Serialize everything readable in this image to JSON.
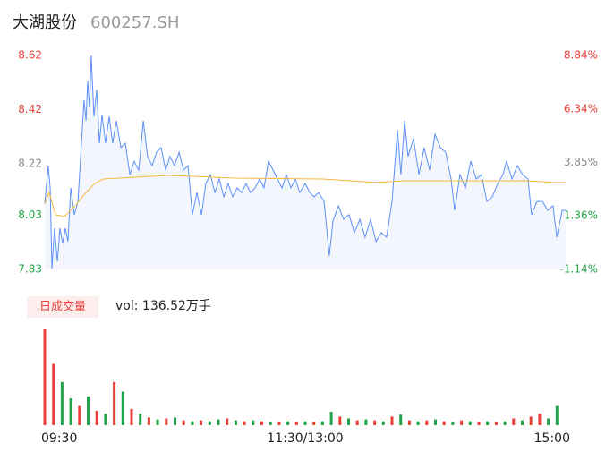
{
  "header": {
    "name": "大湖股份",
    "code": "600257.SH"
  },
  "chart_data": [
    {
      "type": "line",
      "xlim": [
        0,
        240
      ],
      "xticks": [
        {
          "value": 0,
          "label": "09:30"
        },
        {
          "value": 120,
          "label": "11:30/13:00"
        },
        {
          "value": 240,
          "label": "15:00"
        }
      ],
      "ylim": [
        7.83,
        8.62
      ],
      "yticks": [
        8.62,
        8.42,
        8.22,
        8.03,
        7.83
      ],
      "y2lim": [
        -1.14,
        8.84
      ],
      "y2ticks": [
        {
          "value": 8.84,
          "label": "8.84%"
        },
        {
          "value": 6.34,
          "label": "6.34%"
        },
        {
          "value": 3.85,
          "label": "3.85%"
        },
        {
          "value": 1.36,
          "label": "1.36%"
        },
        {
          "value": -1.14,
          "label": "-1.14%"
        }
      ],
      "ytick_colors": [
        "#e8413c",
        "#e8413c",
        "#888888",
        "#22a548",
        "#22a548"
      ],
      "area_color": "#f3f6fd",
      "series": [
        {
          "color": "#5b8ff9",
          "x": [
            0,
            1.6,
            2.5,
            3.3,
            4.5,
            5.8,
            7.0,
            8.2,
            9.5,
            10.7,
            12.0,
            13.6,
            15.3,
            16.9,
            18.1,
            19.0,
            19.8,
            20.6,
            21.4,
            22.7,
            23.9,
            25.2,
            26.4,
            28.0,
            29.7,
            31.3,
            33.0,
            35.1,
            37.1,
            39.2,
            41.2,
            43.3,
            45.4,
            47.4,
            49.5,
            51.5,
            53.6,
            55.7,
            57.7,
            59.8,
            61.9,
            63.9,
            66.0,
            68.0,
            70.1,
            72.2,
            74.2,
            76.3,
            78.4,
            80.4,
            82.5,
            84.5,
            86.6,
            88.7,
            90.7,
            92.8,
            94.8,
            96.9,
            99.0,
            101.0,
            103.1,
            105.2,
            107.2,
            109.3,
            111.3,
            113.4,
            115.5,
            117.5,
            120.0,
            122.1,
            124.1,
            126.2,
            128.7,
            131.1,
            132.8,
            135.3,
            137.7,
            140.2,
            142.7,
            145.2,
            147.6,
            150.1,
            152.6,
            155.1,
            157.5,
            160.0,
            162.5,
            164.1,
            165.8,
            167.4,
            169.9,
            172.4,
            174.8,
            177.3,
            179.8,
            182.3,
            184.7,
            187.2,
            188.9,
            191.3,
            193.8,
            196.3,
            198.8,
            201.2,
            203.7,
            206.2,
            208.7,
            211.1,
            212.8,
            215.3,
            217.7,
            220.2,
            222.7,
            224.3,
            226.8,
            229.3,
            231.8,
            234.2,
            235.9,
            238.4,
            240
          ],
          "values": [
            8.071,
            8.213,
            8.131,
            7.833,
            7.982,
            7.86,
            7.982,
            7.926,
            7.982,
            7.933,
            8.131,
            8.032,
            8.081,
            8.296,
            8.455,
            8.379,
            8.527,
            8.428,
            8.62,
            8.395,
            8.494,
            8.296,
            8.402,
            8.296,
            8.395,
            8.296,
            8.379,
            8.28,
            8.296,
            8.18,
            8.23,
            8.197,
            8.379,
            8.247,
            8.213,
            8.263,
            8.28,
            8.197,
            8.247,
            8.213,
            8.263,
            8.197,
            8.213,
            8.032,
            8.114,
            8.032,
            8.147,
            8.18,
            8.114,
            8.164,
            8.098,
            8.147,
            8.098,
            8.131,
            8.114,
            8.147,
            8.114,
            8.131,
            8.164,
            8.131,
            8.23,
            8.197,
            8.164,
            8.131,
            8.18,
            8.131,
            8.164,
            8.114,
            8.147,
            8.114,
            8.098,
            8.114,
            8.081,
            7.88,
            8.009,
            8.065,
            8.015,
            8.032,
            7.966,
            8.015,
            7.949,
            8.015,
            7.933,
            7.966,
            7.949,
            8.081,
            8.346,
            8.18,
            8.379,
            8.247,
            8.313,
            8.18,
            8.28,
            8.197,
            8.329,
            8.28,
            8.263,
            8.164,
            8.048,
            8.18,
            8.131,
            8.23,
            8.164,
            8.18,
            8.081,
            8.098,
            8.147,
            8.18,
            8.23,
            8.164,
            8.213,
            8.18,
            8.164,
            8.032,
            8.081,
            8.081,
            8.048,
            8.065,
            7.949,
            8.048,
            8.048
          ]
        },
        {
          "color": "#f5b83d",
          "x": [
            0,
            2,
            5,
            9,
            14,
            19,
            23,
            27,
            41,
            56,
            68,
            87,
            128,
            153,
            165,
            186,
            223,
            235,
            240
          ],
          "values": [
            8.071,
            8.114,
            8.032,
            8.025,
            8.065,
            8.114,
            8.147,
            8.164,
            8.17,
            8.177,
            8.174,
            8.167,
            8.164,
            8.151,
            8.157,
            8.157,
            8.157,
            8.151,
            8.151
          ]
        }
      ]
    },
    {
      "type": "bar",
      "label": "日成交量",
      "volume_text": "vol: 136.52万手",
      "xlim": [
        0,
        240
      ],
      "ylim": [
        0,
        10
      ],
      "x": [
        0,
        4,
        8,
        12,
        16,
        20,
        24,
        28,
        32,
        36,
        40,
        44,
        48,
        52,
        56,
        60,
        64,
        68,
        72,
        76,
        80,
        84,
        88,
        92,
        96,
        100,
        104,
        108,
        112,
        116,
        120,
        124,
        128,
        132,
        136,
        140,
        144,
        148,
        152,
        156,
        160,
        164,
        168,
        172,
        176,
        180,
        184,
        188,
        192,
        196,
        200,
        204,
        208,
        212,
        216,
        220,
        224,
        228,
        232,
        236
      ],
      "values": [
        10,
        6.4,
        4.5,
        2.8,
        2.0,
        3.0,
        1.5,
        1.2,
        4.5,
        3.5,
        1.7,
        1.2,
        0.8,
        0.6,
        0.7,
        0.8,
        0.5,
        0.4,
        0.5,
        0.4,
        0.6,
        0.7,
        0.5,
        0.4,
        0.5,
        0.4,
        0.3,
        0.3,
        0.4,
        0.3,
        0.4,
        0.3,
        0.4,
        1.4,
        0.9,
        0.7,
        0.5,
        0.6,
        0.5,
        0.4,
        0.9,
        1.1,
        0.5,
        0.4,
        0.5,
        0.6,
        0.4,
        0.3,
        0.5,
        0.4,
        0.3,
        0.4,
        0.3,
        0.4,
        0.7,
        0.5,
        0.9,
        1.2,
        0.7,
        2.0
      ],
      "colors": [
        "#e8413c",
        "#e8413c",
        "#22a548",
        "#22a548",
        "#e8413c",
        "#22a548",
        "#e8413c",
        "#22a548",
        "#e8413c",
        "#22a548",
        "#e8413c",
        "#22a548",
        "#e8413c",
        "#22a548",
        "#e8413c",
        "#22a548",
        "#e8413c",
        "#22a548",
        "#e8413c",
        "#22a548",
        "#22a548",
        "#e8413c",
        "#22a548",
        "#e8413c",
        "#22a548",
        "#e8413c",
        "#22a548",
        "#e8413c",
        "#22a548",
        "#e8413c",
        "#22a548",
        "#e8413c",
        "#22a548",
        "#22a548",
        "#e8413c",
        "#22a548",
        "#e8413c",
        "#22a548",
        "#e8413c",
        "#22a548",
        "#e8413c",
        "#22a548",
        "#e8413c",
        "#22a548",
        "#e8413c",
        "#22a548",
        "#e8413c",
        "#22a548",
        "#e8413c",
        "#22a548",
        "#e8413c",
        "#22a548",
        "#e8413c",
        "#22a548",
        "#e8413c",
        "#22a548",
        "#e8413c",
        "#e8413c",
        "#22a548",
        "#22a548"
      ]
    }
  ]
}
